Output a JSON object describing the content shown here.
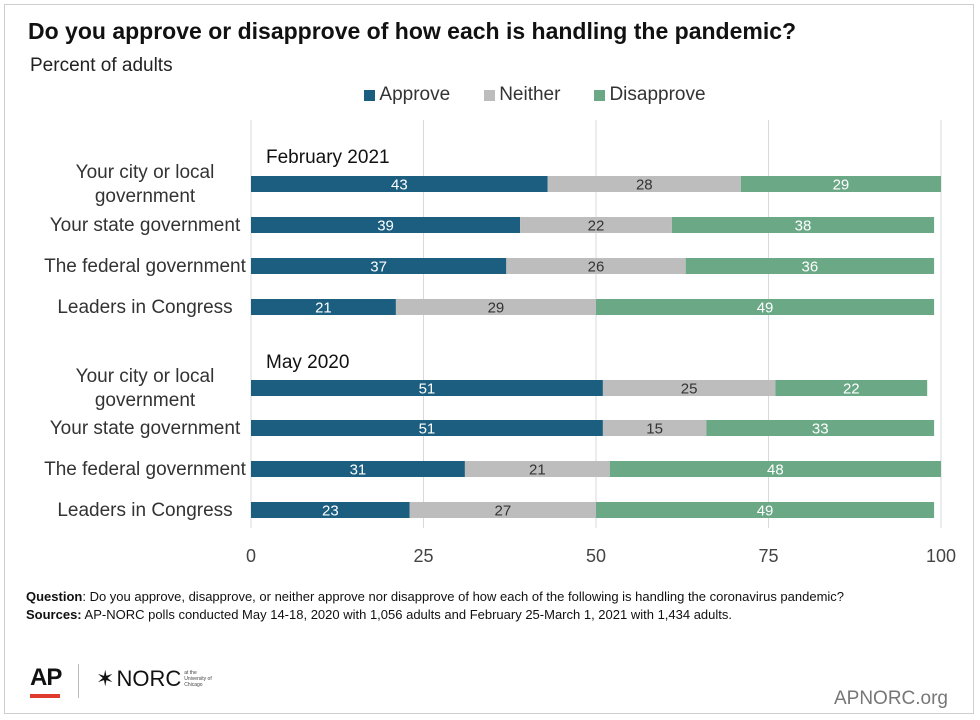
{
  "header": {
    "title": "Do you approve or disapprove of how each is handling the pandemic?",
    "subtitle": "Percent of adults"
  },
  "colors": {
    "approve": "#1b5e80",
    "neither": "#bdbdbd",
    "disapprove": "#6aa886",
    "grid": "#d9d9d9"
  },
  "chart_data": {
    "type": "bar",
    "orientation": "horizontal-stacked",
    "xlim": [
      0,
      100
    ],
    "xticks": [
      0,
      25,
      50,
      75,
      100
    ],
    "grid": true,
    "legend": {
      "placement": "top",
      "entries": [
        "Approve",
        "Neither",
        "Disapprove"
      ]
    },
    "groups": [
      {
        "label": "February 2021",
        "categories": [
          "Your city or local government",
          "Your state government",
          "The federal government",
          "Leaders in Congress"
        ],
        "series": [
          {
            "name": "Approve",
            "values": [
              43,
              39,
              37,
              21
            ]
          },
          {
            "name": "Neither",
            "values": [
              28,
              22,
              26,
              29
            ]
          },
          {
            "name": "Disapprove",
            "values": [
              29,
              38,
              36,
              49
            ]
          }
        ]
      },
      {
        "label": "May 2020",
        "categories": [
          "Your city or local government",
          "Your state government",
          "The federal government",
          "Leaders in Congress"
        ],
        "series": [
          {
            "name": "Approve",
            "values": [
              51,
              51,
              31,
              23
            ]
          },
          {
            "name": "Neither",
            "values": [
              25,
              15,
              21,
              27
            ]
          },
          {
            "name": "Disapprove",
            "values": [
              22,
              33,
              48,
              49
            ]
          }
        ]
      }
    ]
  },
  "footer": {
    "question_label": "Question",
    "question_text": ": Do you approve, disapprove, or neither approve nor disapprove of how each of the following is handling the coronavirus pandemic?",
    "sources_label": "Sources:",
    "sources_text": " AP-NORC polls conducted May 14-18, 2020 with 1,056 adults and February 25-March 1, 2021 with 1,434 adults."
  },
  "logos": {
    "ap": "AP",
    "norc": "NORC",
    "norc_small": "at the University of Chicago"
  },
  "site": "APNORC.org"
}
